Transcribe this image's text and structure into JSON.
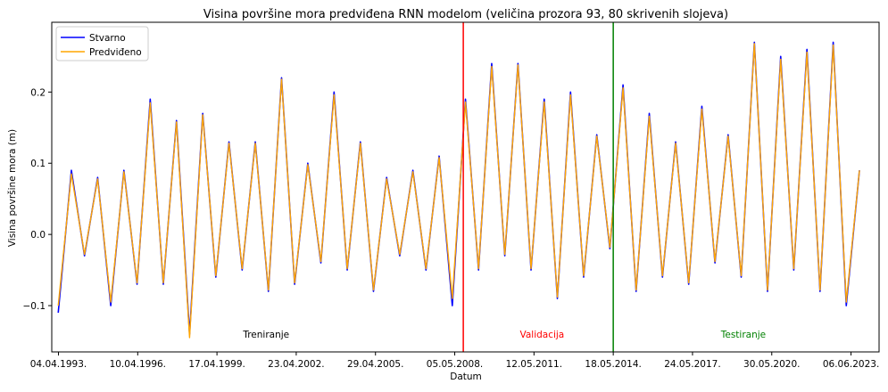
{
  "chart_data": {
    "type": "line",
    "title": "Visina površine mora predviđena RNN modelom (veličina prozora 93, 80 skrivenih slojeva)",
    "xlabel": "Datum",
    "ylabel": "Visina površine mora (m)",
    "x_range": [
      "1993-01-01",
      "2024-06-30"
    ],
    "ylim": [
      -0.165,
      0.298
    ],
    "x_ticks": [
      "04.04.1993.",
      "10.04.1996.",
      "17.04.1999.",
      "23.04.2002.",
      "29.04.2005.",
      "05.05.2008.",
      "12.05.2011.",
      "18.05.2014.",
      "24.05.2017.",
      "30.05.2020.",
      "06.06.2023."
    ],
    "y_ticks": [
      "−0.1",
      "0.0",
      "0.1",
      "0.2"
    ],
    "y_tick_values": [
      -0.1,
      0.0,
      0.1,
      0.2
    ],
    "grid": false,
    "legend_position": "top-left",
    "series": [
      {
        "name": "Stvarno",
        "color": "#0000ff",
        "x": [
          "1993-04",
          "1993-10",
          "1994-04",
          "1994-10",
          "1995-04",
          "1995-10",
          "1996-04",
          "1996-10",
          "1997-04",
          "1997-10",
          "1998-04",
          "1998-10",
          "1999-04",
          "1999-10",
          "2000-04",
          "2000-10",
          "2001-04",
          "2001-10",
          "2002-04",
          "2002-10",
          "2003-04",
          "2003-10",
          "2004-04",
          "2004-10",
          "2005-04",
          "2005-10",
          "2006-04",
          "2006-10",
          "2007-04",
          "2007-10",
          "2008-04",
          "2008-10",
          "2009-04",
          "2009-10",
          "2010-04",
          "2010-10",
          "2011-04",
          "2011-10",
          "2012-04",
          "2012-10",
          "2013-04",
          "2013-10",
          "2014-04",
          "2014-10",
          "2015-04",
          "2015-10",
          "2016-04",
          "2016-10",
          "2017-04",
          "2017-10",
          "2018-04",
          "2018-10",
          "2019-04",
          "2019-10",
          "2020-04",
          "2020-10",
          "2021-04",
          "2021-10",
          "2022-04",
          "2022-10",
          "2023-04",
          "2023-10"
        ],
        "values": [
          -0.11,
          0.09,
          -0.03,
          0.08,
          -0.1,
          0.09,
          -0.07,
          0.19,
          -0.07,
          0.16,
          -0.14,
          0.17,
          -0.06,
          0.13,
          -0.05,
          0.13,
          -0.08,
          0.22,
          -0.07,
          0.1,
          -0.04,
          0.2,
          -0.05,
          0.13,
          -0.08,
          0.08,
          -0.03,
          0.09,
          -0.05,
          0.11,
          -0.1,
          0.19,
          -0.05,
          0.24,
          -0.03,
          0.24,
          -0.05,
          0.19,
          -0.09,
          0.2,
          -0.06,
          0.14,
          -0.02,
          0.21,
          -0.08,
          0.17,
          -0.06,
          0.13,
          -0.07,
          0.18,
          -0.04,
          0.14,
          -0.06,
          0.27,
          -0.08,
          0.25,
          -0.05,
          0.26,
          -0.08,
          0.27,
          -0.1,
          0.09
        ]
      },
      {
        "name": "Predviđeno",
        "color": "#ffa500",
        "x": [
          "1993-04",
          "1993-10",
          "1994-04",
          "1994-10",
          "1995-04",
          "1995-10",
          "1996-04",
          "1996-10",
          "1997-04",
          "1997-10",
          "1998-04",
          "1998-10",
          "1999-04",
          "1999-10",
          "2000-04",
          "2000-10",
          "2001-04",
          "2001-10",
          "2002-04",
          "2002-10",
          "2003-04",
          "2003-10",
          "2004-04",
          "2004-10",
          "2005-04",
          "2005-10",
          "2006-04",
          "2006-10",
          "2007-04",
          "2007-10",
          "2008-04",
          "2008-10",
          "2009-04",
          "2009-10",
          "2010-04",
          "2010-10",
          "2011-04",
          "2011-10",
          "2012-04",
          "2012-10",
          "2013-04",
          "2013-10",
          "2014-04",
          "2014-10",
          "2015-04",
          "2015-10",
          "2016-04",
          "2016-10",
          "2017-04",
          "2017-10",
          "2018-04",
          "2018-10",
          "2019-04",
          "2019-10",
          "2020-04",
          "2020-10",
          "2021-04",
          "2021-10",
          "2022-04",
          "2022-10",
          "2023-04",
          "2023-10"
        ],
        "values": [
          -0.1,
          0.085,
          -0.028,
          0.078,
          -0.095,
          0.088,
          -0.068,
          0.185,
          -0.068,
          0.158,
          -0.145,
          0.168,
          -0.058,
          0.128,
          -0.048,
          0.128,
          -0.078,
          0.218,
          -0.068,
          0.098,
          -0.038,
          0.196,
          -0.048,
          0.128,
          -0.078,
          0.078,
          -0.028,
          0.088,
          -0.048,
          0.108,
          -0.09,
          0.186,
          -0.048,
          0.236,
          -0.028,
          0.238,
          -0.048,
          0.186,
          -0.088,
          0.196,
          -0.058,
          0.138,
          -0.018,
          0.206,
          -0.078,
          0.166,
          -0.058,
          0.128,
          -0.068,
          0.176,
          -0.038,
          0.138,
          -0.058,
          0.268,
          -0.078,
          0.246,
          -0.048,
          0.256,
          -0.078,
          0.266,
          -0.095,
          0.09
        ]
      }
    ],
    "split_lines": [
      {
        "date": "2008-09-01",
        "color": "#ff0000"
      },
      {
        "date": "2014-05-18",
        "color": "#008000"
      }
    ],
    "regions": [
      {
        "label": "Treniranje",
        "color": "#000000",
        "center_date": "2001-03-01"
      },
      {
        "label": "Validacija",
        "color": "#ff0000",
        "center_date": "2011-09-01"
      },
      {
        "label": "Testiranje",
        "color": "#008000",
        "center_date": "2019-05-01"
      }
    ]
  }
}
